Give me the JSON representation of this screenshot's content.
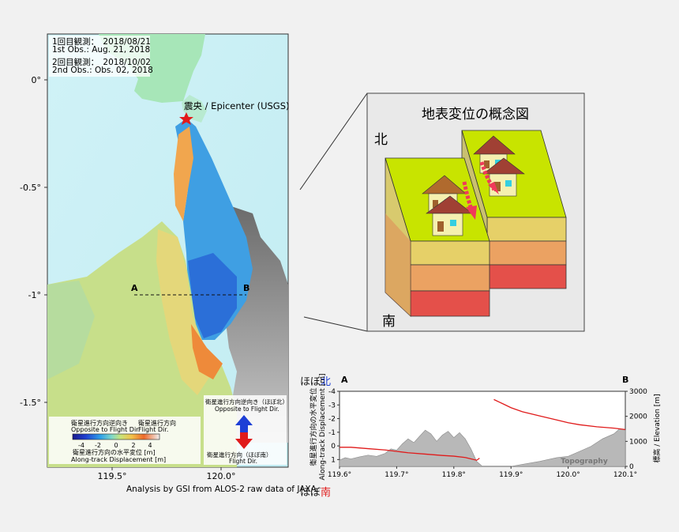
{
  "map": {
    "obs1": [
      "1回目観測：　2018/08/21",
      "1st Obs.: Aug. 21, 2018"
    ],
    "obs2": [
      "2回目観測：　2018/10/02",
      "2nd Obs.: Obs. 02, 2018"
    ],
    "epicenter_label": "震央 / Epicenter (USGS)",
    "lat_ticks": [
      "0°",
      "-0.5°",
      "-1°",
      "-1.5°"
    ],
    "lon_ticks": [
      "119.5°",
      "120.0°"
    ],
    "profile_a": "A",
    "profile_b": "B",
    "credit": "Analysis by GSI from ALOS-2 raw data of JAXA",
    "legend": {
      "toward_jp": "衛星進行方向逆向き",
      "toward_en": "Opposite to Flight Dir.",
      "along_jp": "衛星進行方向",
      "along_en": "Flight Dir.",
      "ticks": [
        "-4",
        "-2",
        "0",
        "2",
        "4"
      ],
      "title_jp": "衛星進行方向の水平変位 [m]",
      "title_en": "Along-track Displacement [m]"
    },
    "direction": {
      "up_jp": "衛星進行方向逆向き（ほぼ北）",
      "up_en": "Opposite to Flight Dir.",
      "down_jp": "衛星進行方向（ほぼ南）",
      "down_en": "Flight Dir.",
      "north_char": "北",
      "south_char": "南",
      "colors": {
        "up": "#1d3fd6",
        "down": "#e01b1b"
      }
    }
  },
  "concept": {
    "title": "地表変位の概念図",
    "north": "北",
    "south": "南"
  },
  "profile": {
    "left_label_prefix": "ほぼ",
    "left_label_north": "北",
    "left_label_south": "南",
    "point_a": "A",
    "point_b": "B",
    "y_left_label_jp": "衛星進行方向の水平変位",
    "y_left_label_en": "Along-track Displacement [m]",
    "y_right_label": "標高 / Elevation [m]",
    "topography_label": "Topography"
  },
  "chart_data": {
    "type": "line",
    "x_ticks": [
      "119.6°",
      "119.7°",
      "119.8°",
      "119.9°",
      "120.0°",
      "120.1°"
    ],
    "y_left_ticks": [
      "-4",
      "-3",
      "-2",
      "-1",
      "0",
      "1"
    ],
    "y_right_ticks": [
      "3000",
      "2000",
      "1000",
      "0"
    ],
    "xlim": [
      119.6,
      120.1
    ],
    "ylim_left": [
      -4,
      1.5
    ],
    "ylim_right": [
      0,
      3000
    ],
    "series": [
      {
        "name": "Topography",
        "axis": "right",
        "x": [
          119.6,
          119.61,
          119.62,
          119.635,
          119.65,
          119.665,
          119.68,
          119.69,
          119.7,
          119.71,
          119.72,
          119.73,
          119.74,
          119.75,
          119.76,
          119.77,
          119.78,
          119.79,
          119.8,
          119.81,
          119.82,
          119.83,
          119.84,
          119.85,
          119.86,
          119.88,
          119.9,
          119.92,
          119.95,
          119.98,
          120.0,
          120.02,
          120.04,
          120.06,
          120.08,
          120.09,
          120.1
        ],
        "values": [
          250,
          350,
          300,
          380,
          450,
          400,
          520,
          700,
          650,
          900,
          1100,
          950,
          1200,
          1450,
          1300,
          1000,
          1250,
          1400,
          1150,
          1350,
          1100,
          700,
          200,
          0,
          0,
          0,
          0,
          80,
          200,
          350,
          400,
          600,
          800,
          1100,
          1300,
          1500,
          1450
        ]
      },
      {
        "name": "",
        "axis": "left",
        "x": [
          119.6,
          119.62,
          119.65,
          119.68,
          119.7,
          119.72,
          119.75,
          119.78,
          119.8,
          119.82,
          119.83,
          119.84,
          119.845
        ],
        "values": [
          0.1,
          0.1,
          0.2,
          0.3,
          0.4,
          0.5,
          0.6,
          0.7,
          0.75,
          0.85,
          0.95,
          1.05,
          0.9
        ]
      },
      {
        "name": "",
        "axis": "left",
        "x": [
          119.87,
          119.88,
          119.89,
          119.9,
          119.92,
          119.95,
          119.98,
          120.0,
          120.02,
          120.05,
          120.08,
          120.1
        ],
        "values": [
          -3.4,
          -3.2,
          -3.0,
          -2.8,
          -2.5,
          -2.2,
          -1.9,
          -1.7,
          -1.55,
          -1.4,
          -1.3,
          -1.2
        ]
      }
    ]
  }
}
